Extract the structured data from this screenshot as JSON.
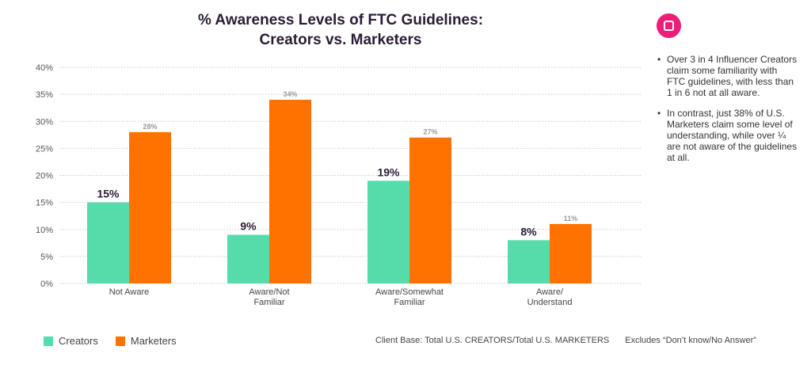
{
  "chart_data": {
    "type": "bar",
    "title": "% Awareness Levels of FTC Guidelines: Creators vs. Marketers",
    "title_lines": [
      "% Awareness Levels of FTC Guidelines:",
      "Creators vs. Marketers"
    ],
    "categories": [
      [
        "Not Aware"
      ],
      [
        "Aware/Not",
        "Familiar"
      ],
      [
        "Aware/Somewhat",
        "Familiar"
      ],
      [
        "Aware/",
        "Understand"
      ]
    ],
    "series": [
      {
        "name": "Creators",
        "values": [
          15,
          9,
          19,
          8
        ],
        "labels": [
          "15%",
          "9%",
          "19%",
          "8%"
        ],
        "color": "#56dcaa"
      },
      {
        "name": "Marketers",
        "values": [
          28,
          34,
          27,
          11
        ],
        "labels": [
          "28%",
          "34%",
          "27%",
          "11%"
        ],
        "color": "#ff7200"
      }
    ],
    "ylim": [
      0,
      40
    ],
    "yticks": [
      0,
      5,
      10,
      15,
      20,
      25,
      30,
      35,
      40
    ],
    "ytick_labels": [
      "0%",
      "5%",
      "10%",
      "15%",
      "20%",
      "25%",
      "30%",
      "35%",
      "40%"
    ],
    "grid": true,
    "legend_position": "bottom-left"
  },
  "notes": [
    "Over 3 in 4 Influencer Creators claim some familiarity with FTC guidelines, with less than 1 in 6 not at all aware.",
    "In contrast, just 38% of U.S.  Marketers claim some level of understanding, while over ¼ are not aware of the guidelines at all."
  ],
  "footer": {
    "client_base": "Client Base:  Total U.S. CREATORS/Total U.S. MARKETERS",
    "excludes": "Excludes “Don’t know/No Answer”"
  },
  "colors": {
    "creators": "#56dcaa",
    "marketers": "#ff7200",
    "logo": "#ec1e79",
    "grid": "#c8c8c8"
  },
  "logo_icon": "brand-logo-icon"
}
